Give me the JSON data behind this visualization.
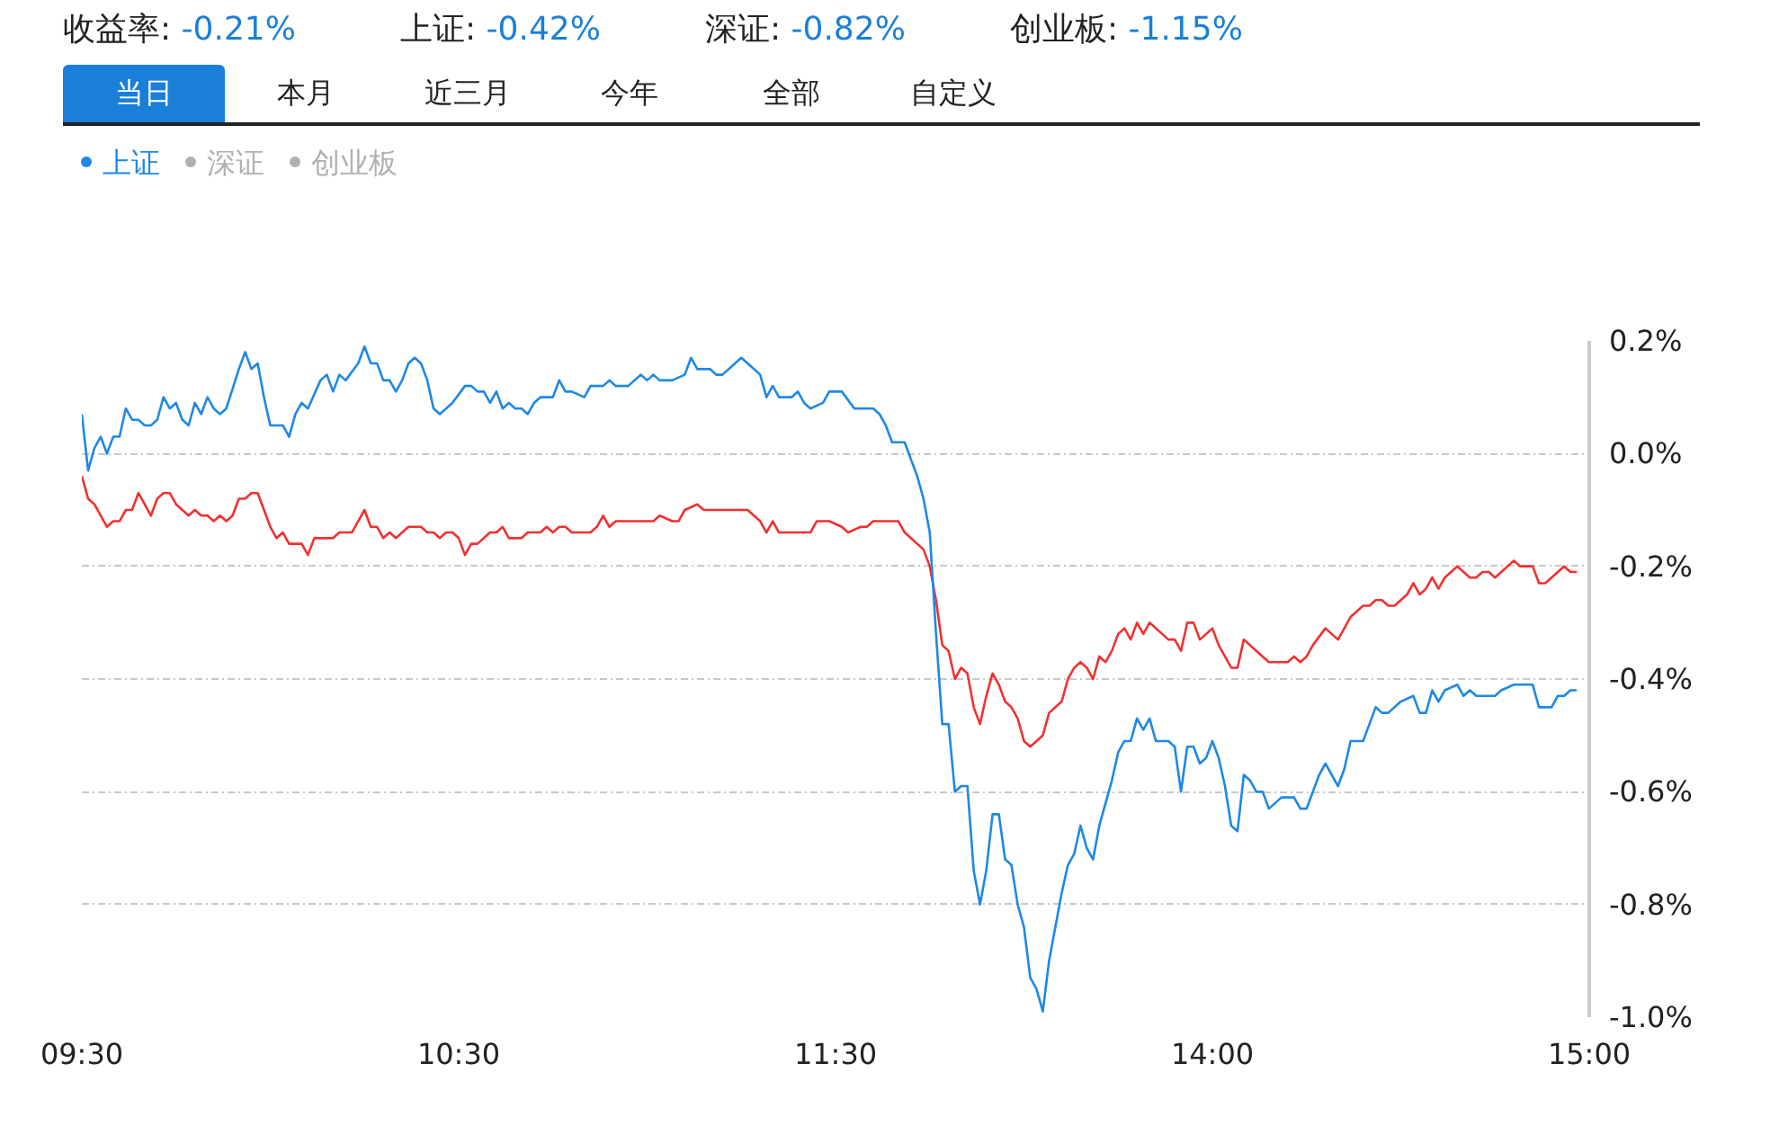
{
  "chart_data": {
    "type": "line",
    "annotations": [
      "收益率: -0.21%",
      "上证: -0.42%",
      "深证: -0.82%",
      "创业板: -1.15%",
      "当日",
      "本月",
      "近三月",
      "今年",
      "全部",
      "自定义",
      "深证",
      "创业板"
    ],
    "categories": [
      "09:30",
      null,
      null,
      null,
      null,
      null,
      null,
      null,
      null,
      null,
      null,
      null,
      null,
      null,
      null,
      null,
      null,
      null,
      null,
      null,
      null,
      null,
      null,
      null,
      null,
      null,
      null,
      null,
      null,
      null,
      null,
      null,
      null,
      null,
      null,
      null,
      null,
      null,
      null,
      null,
      null,
      null,
      null,
      null,
      null,
      null,
      null,
      null,
      null,
      null,
      null,
      null,
      null,
      null,
      null,
      null,
      null,
      null,
      null,
      null,
      "10:30",
      null,
      null,
      null,
      null,
      null,
      null,
      null,
      null,
      null,
      null,
      null,
      null,
      null,
      null,
      null,
      null,
      null,
      null,
      null,
      null,
      null,
      null,
      null,
      null,
      null,
      null,
      null,
      null,
      null,
      null,
      null,
      null,
      null,
      null,
      null,
      null,
      null,
      null,
      null,
      null,
      null,
      null,
      null,
      null,
      null,
      null,
      null,
      null,
      null,
      null,
      null,
      null,
      null,
      null,
      null,
      null,
      null,
      null,
      null,
      "11:30",
      null,
      null,
      null,
      null,
      null,
      null,
      null,
      null,
      null,
      null,
      null,
      null,
      null,
      null,
      null,
      null,
      null,
      null,
      null,
      null,
      null,
      null,
      null,
      null,
      null,
      null,
      null,
      null,
      null,
      null,
      null,
      null,
      null,
      null,
      null,
      null,
      null,
      null,
      null,
      null,
      null,
      null,
      null,
      null,
      null,
      null,
      null,
      null,
      null,
      null,
      null,
      null,
      null,
      null,
      null,
      null,
      null,
      null,
      null,
      "14:00",
      null,
      null,
      null,
      null,
      null,
      null,
      null,
      null,
      null,
      null,
      null,
      null,
      null,
      null,
      null,
      null,
      null,
      null,
      null,
      null,
      null,
      null,
      null,
      null,
      null,
      null,
      null,
      null,
      null,
      null,
      null,
      null,
      null,
      null,
      null,
      null,
      null,
      null,
      null,
      null,
      null,
      null,
      null,
      null,
      null,
      null,
      null,
      null,
      null,
      null,
      null,
      null,
      null,
      null,
      null,
      null,
      null,
      null,
      null,
      "15:00"
    ],
    "ylim": [
      -1.0,
      0.2
    ],
    "yticks": [
      {
        "value": 0.2,
        "label": "0.2%"
      },
      {
        "value": 0,
        "label": "0.0%"
      },
      {
        "value": -0.2,
        "label": "-0.2%"
      },
      {
        "value": -0.4,
        "label": "-0.4%"
      },
      {
        "value": -0.6,
        "label": "-0.6%"
      },
      {
        "value": -0.8,
        "label": "-0.8%"
      },
      {
        "value": -1.0,
        "label": "-1.0%"
      }
    ],
    "grid": "y",
    "legend": "top left",
    "series": [
      {
        "color": "#f23030",
        "values": [
          -0.04,
          -0.08,
          -0.09,
          null,
          -0.13,
          -0.12,
          -0.12,
          -0.1,
          -0.1,
          -0.07,
          -0.09,
          -0.11,
          -0.08,
          -0.07,
          -0.07,
          -0.09,
          null,
          -0.11,
          -0.1,
          -0.11,
          -0.11,
          -0.12,
          -0.11,
          -0.12,
          -0.11,
          -0.08,
          -0.08,
          -0.07,
          -0.07,
          null,
          -0.13,
          -0.15,
          -0.14,
          -0.16,
          null,
          -0.16,
          -0.18,
          -0.15,
          -0.15,
          -0.15,
          -0.15,
          -0.14,
          -0.14,
          -0.14,
          -0.12,
          -0.1,
          -0.13,
          -0.13,
          -0.15,
          -0.14,
          -0.15,
          -0.14,
          -0.13,
          -0.13,
          -0.13,
          -0.14,
          -0.14,
          -0.15,
          -0.14,
          -0.14,
          -0.15,
          -0.18,
          -0.16,
          -0.16,
          null,
          -0.14,
          -0.14,
          -0.13,
          -0.15,
          -0.15,
          -0.15,
          -0.14,
          null,
          -0.14,
          -0.13,
          -0.14,
          -0.13,
          -0.13,
          -0.14,
          -0.14,
          -0.14,
          -0.14,
          -0.13,
          -0.11,
          -0.13,
          -0.12,
          -0.12,
          -0.12,
          -0.12,
          -0.12,
          -0.12,
          -0.12,
          -0.11,
          null,
          -0.12,
          -0.12,
          -0.1,
          null,
          -0.09,
          -0.1,
          -0.1,
          -0.1,
          -0.1,
          -0.1,
          -0.1,
          -0.1,
          -0.1,
          null,
          -0.12,
          -0.14,
          -0.12,
          -0.14,
          -0.14,
          null,
          -0.14,
          null,
          -0.14,
          -0.12,
          null,
          -0.12,
          null,
          -0.13,
          -0.14,
          null,
          -0.13,
          -0.13,
          -0.12,
          -0.12,
          -0.12,
          -0.12,
          -0.12,
          -0.14,
          null,
          -0.16,
          -0.17,
          -0.2,
          -0.26,
          -0.34,
          -0.35,
          -0.4,
          -0.38,
          -0.39,
          -0.45,
          -0.48,
          -0.43,
          -0.39,
          -0.41,
          -0.44,
          -0.45,
          -0.47,
          -0.51,
          -0.52,
          null,
          -0.5,
          -0.46,
          null,
          -0.44,
          -0.4,
          -0.38,
          -0.37,
          -0.38,
          -0.4,
          -0.36,
          -0.37,
          -0.35,
          -0.32,
          -0.31,
          -0.33,
          -0.3,
          -0.32,
          -0.3,
          null,
          -0.32,
          -0.33,
          -0.33,
          -0.35,
          -0.3,
          -0.3,
          -0.33,
          null,
          -0.31,
          -0.34,
          -0.36,
          -0.38,
          -0.38,
          -0.33,
          null,
          -0.35,
          -0.36,
          -0.37,
          -0.37,
          -0.37,
          -0.37,
          -0.36,
          -0.37,
          -0.36,
          -0.34,
          null,
          -0.31,
          null,
          -0.33,
          -0.31,
          -0.29,
          null,
          -0.27,
          -0.27,
          -0.26,
          -0.26,
          -0.27,
          -0.27,
          null,
          -0.25,
          -0.23,
          -0.25,
          -0.24,
          -0.22,
          -0.24,
          -0.22,
          null,
          -0.2,
          null,
          -0.22,
          -0.22,
          -0.21,
          -0.21,
          -0.22,
          -0.21,
          null,
          -0.19,
          -0.2,
          -0.2,
          -0.2,
          -0.23,
          -0.23,
          null,
          null,
          -0.2,
          -0.21,
          -0.21,
          null,
          null
        ]
      },
      {
        "name": "上证",
        "color": "#1e88e5",
        "values": [
          0.07,
          -0.03,
          0.01,
          0.03,
          0.0,
          0.03,
          0.03,
          0.08,
          0.06,
          0.06,
          0.05,
          0.05,
          0.06,
          0.1,
          0.08,
          0.09,
          0.06,
          0.05,
          0.09,
          0.07,
          0.1,
          0.08,
          0.07,
          0.08,
          null,
          0.15,
          0.18,
          0.15,
          0.16,
          0.1,
          0.05,
          0.05,
          0.05,
          0.03,
          0.07,
          0.09,
          0.08,
          null,
          0.13,
          0.14,
          0.11,
          0.14,
          0.13,
          null,
          0.16,
          0.19,
          0.16,
          0.16,
          0.13,
          0.13,
          0.11,
          0.13,
          0.16,
          0.17,
          0.16,
          0.13,
          0.08,
          0.07,
          null,
          0.09,
          null,
          0.12,
          0.12,
          0.11,
          0.11,
          0.09,
          0.11,
          0.08,
          0.09,
          0.08,
          0.08,
          0.07,
          0.09,
          0.1,
          0.1,
          0.1,
          0.13,
          0.11,
          0.11,
          null,
          0.1,
          0.12,
          0.12,
          0.12,
          0.13,
          0.12,
          0.12,
          0.12,
          null,
          0.14,
          0.13,
          0.14,
          0.13,
          0.13,
          0.13,
          null,
          0.14,
          0.17,
          0.15,
          0.15,
          0.15,
          0.14,
          0.14,
          null,
          0.16,
          0.17,
          null,
          0.15,
          0.14,
          0.1,
          0.12,
          0.1,
          0.1,
          0.1,
          0.11,
          0.09,
          0.08,
          null,
          0.09,
          0.11,
          0.11,
          0.11,
          null,
          0.08,
          0.08,
          0.08,
          0.08,
          0.07,
          0.05,
          0.02,
          0.02,
          0.02,
          -0.01,
          -0.04,
          -0.08,
          -0.14,
          -0.32,
          -0.48,
          -0.48,
          -0.6,
          -0.59,
          -0.59,
          -0.74,
          -0.8,
          -0.74,
          -0.64,
          -0.64,
          -0.72,
          -0.73,
          -0.8,
          -0.84,
          -0.93,
          -0.95,
          -0.99,
          -0.9,
          -0.84,
          -0.78,
          -0.73,
          -0.71,
          -0.66,
          -0.7,
          -0.72,
          -0.66,
          -0.62,
          -0.58,
          -0.53,
          -0.51,
          -0.51,
          -0.47,
          -0.49,
          -0.47,
          -0.51,
          -0.51,
          -0.51,
          -0.52,
          -0.6,
          -0.52,
          -0.52,
          -0.55,
          -0.54,
          -0.51,
          -0.54,
          -0.59,
          -0.66,
          -0.67,
          -0.57,
          -0.58,
          -0.6,
          -0.6,
          -0.63,
          -0.62,
          -0.61,
          -0.61,
          -0.61,
          -0.63,
          -0.63,
          null,
          -0.57,
          -0.55,
          null,
          -0.59,
          -0.56,
          -0.51,
          -0.51,
          -0.51,
          -0.48,
          -0.45,
          -0.46,
          -0.46,
          null,
          -0.44,
          null,
          -0.43,
          -0.46,
          -0.46,
          -0.42,
          -0.44,
          -0.42,
          null,
          -0.41,
          -0.43,
          -0.42,
          -0.43,
          -0.43,
          -0.43,
          -0.43,
          -0.42,
          null,
          -0.41,
          -0.41,
          -0.41,
          -0.41,
          -0.45,
          -0.45,
          -0.45,
          -0.43,
          -0.43,
          -0.42,
          -0.42,
          null,
          null
        ]
      }
    ]
  }
}
